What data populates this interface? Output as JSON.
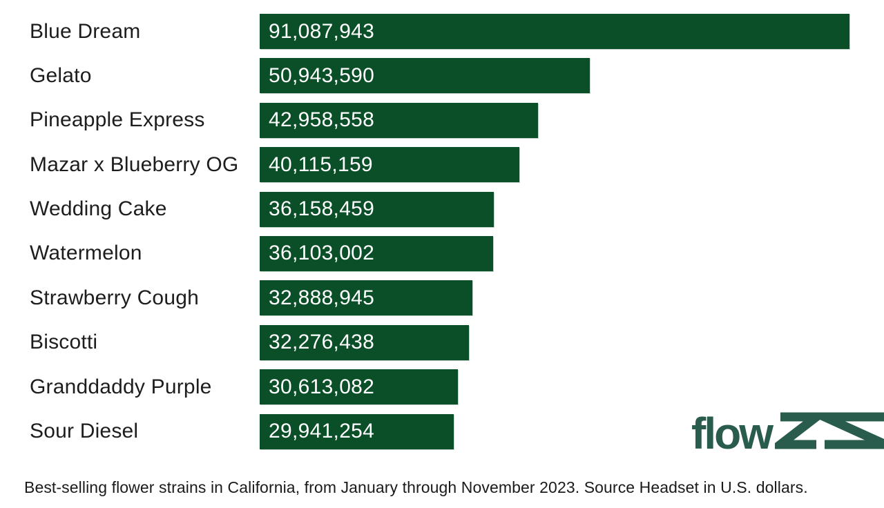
{
  "chart_data": {
    "type": "bar",
    "orientation": "horizontal",
    "title": "",
    "categories": [
      "Blue Dream",
      "Gelato",
      "Pineapple Express",
      "Mazar x Blueberry OG",
      "Wedding Cake",
      "Watermelon",
      "Strawberry Cough",
      "Biscotti",
      "Granddaddy Purple",
      "Sour Diesel"
    ],
    "values": [
      91087943,
      50943590,
      42958558,
      40115159,
      36158459,
      36103002,
      32888945,
      32276438,
      30613082,
      29941254
    ],
    "value_labels": [
      "91,087,943",
      "50,943,590",
      "42,958,558",
      "40,115,159",
      "36,158,459",
      "36,103,002",
      "32,888,945",
      "32,276,438",
      "30,613,082",
      "29,941,254"
    ],
    "xlim": [
      0,
      91087943
    ],
    "unit": "U.S. dollars",
    "grid": false,
    "legend": false,
    "bar_color": "#0b4f29",
    "category_label_color": "#1d1d1d",
    "value_label_color": "#ffffff"
  },
  "caption": "Best-selling flower strains in California, from January through November 2023. Source Headset in U.S. dollars.",
  "logo": {
    "text": "flowzz",
    "color": "#2a5c4e"
  }
}
